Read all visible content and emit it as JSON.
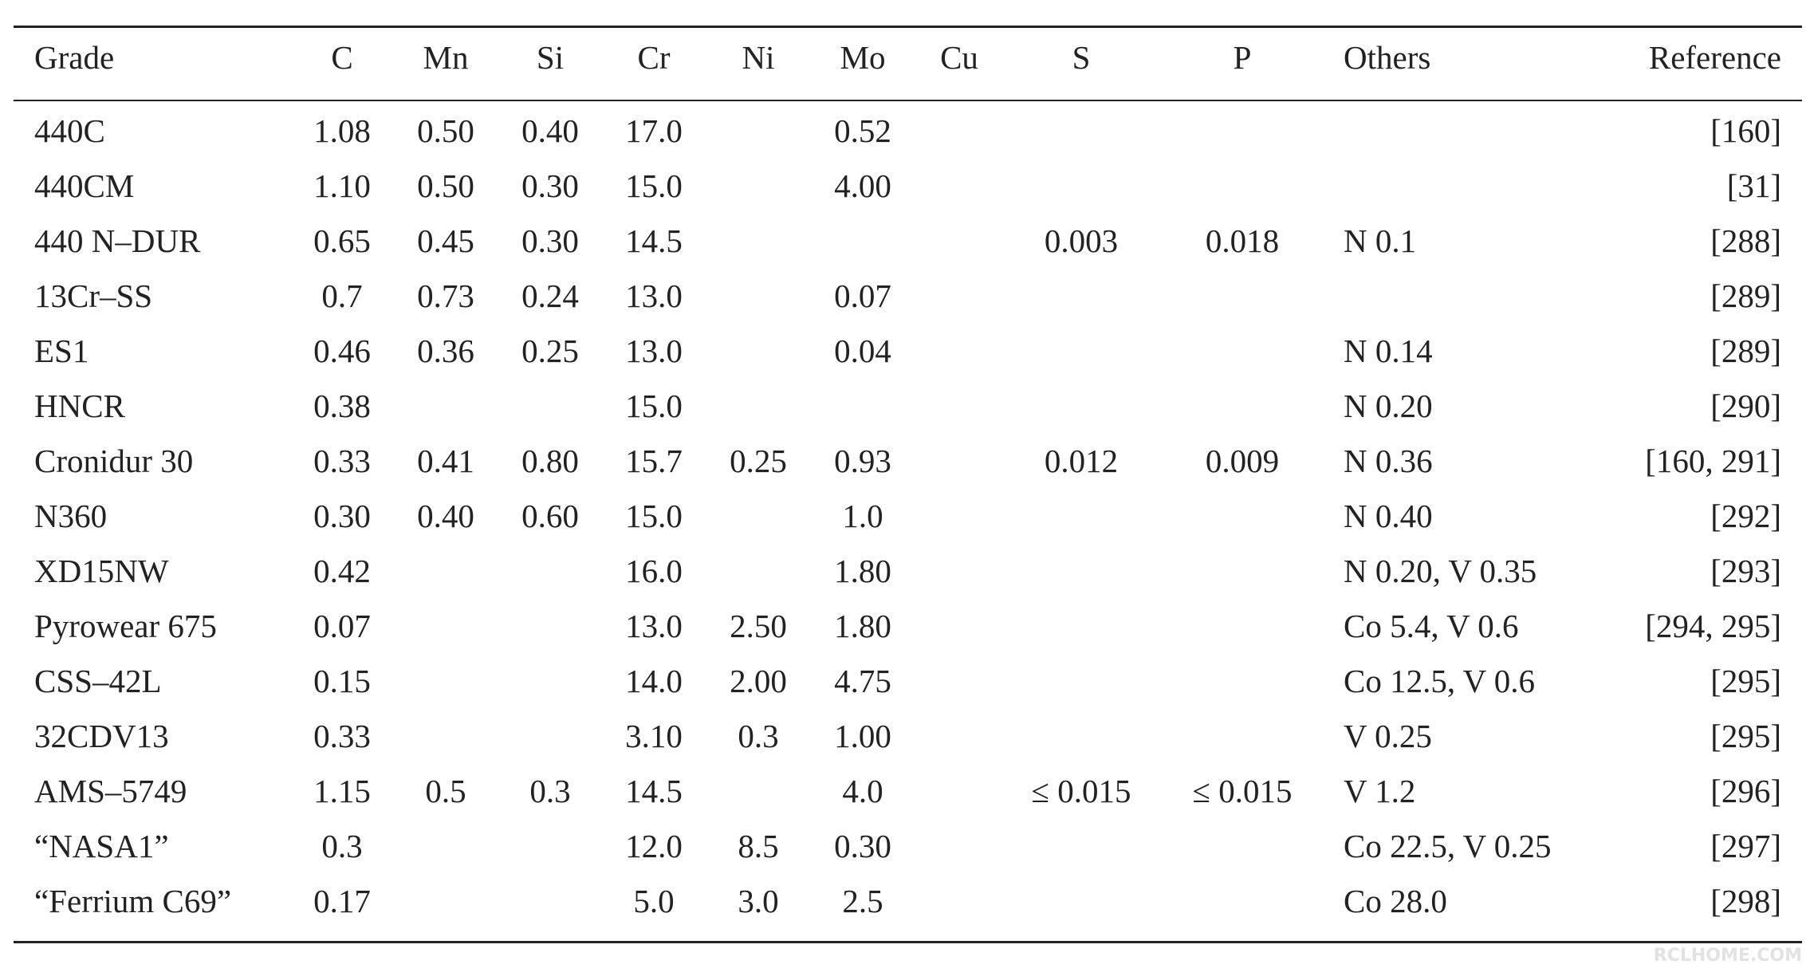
{
  "table": {
    "header": [
      "Grade",
      "C",
      "Mn",
      "Si",
      "Cr",
      "Ni",
      "Mo",
      "Cu",
      "S",
      "P",
      "Others",
      "Reference"
    ],
    "rows": [
      [
        "440C",
        "1.08",
        "0.50",
        "0.40",
        "17.0",
        null,
        "0.52",
        null,
        null,
        null,
        null,
        "[160]"
      ],
      [
        "440CM",
        "1.10",
        "0.50",
        "0.30",
        "15.0",
        null,
        "4.00",
        null,
        null,
        null,
        null,
        "[31]"
      ],
      [
        "440 N–DUR",
        "0.65",
        "0.45",
        "0.30",
        "14.5",
        null,
        null,
        null,
        "0.003",
        "0.018",
        "N 0.1",
        "[288]"
      ],
      [
        "13Cr–SS",
        "0.7",
        "0.73",
        "0.24",
        "13.0",
        null,
        "0.07",
        null,
        null,
        null,
        null,
        "[289]"
      ],
      [
        "ES1",
        "0.46",
        "0.36",
        "0.25",
        "13.0",
        null,
        "0.04",
        null,
        null,
        null,
        "N 0.14",
        "[289]"
      ],
      [
        "HNCR",
        "0.38",
        null,
        null,
        "15.0",
        null,
        null,
        null,
        null,
        null,
        "N 0.20",
        "[290]"
      ],
      [
        "Cronidur 30",
        "0.33",
        "0.41",
        "0.80",
        "15.7",
        "0.25",
        "0.93",
        null,
        "0.012",
        "0.009",
        "N 0.36",
        "[160, 291]"
      ],
      [
        "N360",
        "0.30",
        "0.40",
        "0.60",
        "15.0",
        null,
        "1.0",
        null,
        null,
        null,
        "N 0.40",
        "[292]"
      ],
      [
        "XD15NW",
        "0.42",
        null,
        null,
        "16.0",
        null,
        "1.80",
        null,
        null,
        null,
        "N 0.20, V 0.35",
        "[293]"
      ],
      [
        "Pyrowear 675",
        "0.07",
        null,
        null,
        "13.0",
        "2.50",
        "1.80",
        null,
        null,
        null,
        "Co 5.4, V 0.6",
        "[294, 295]"
      ],
      [
        "CSS–42L",
        "0.15",
        null,
        null,
        "14.0",
        "2.00",
        "4.75",
        null,
        null,
        null,
        "Co 12.5, V 0.6",
        "[295]"
      ],
      [
        "32CDV13",
        "0.33",
        null,
        null,
        "3.10",
        "0.3",
        "1.00",
        null,
        null,
        null,
        "V 0.25",
        "[295]"
      ],
      [
        "AMS–5749",
        "1.15",
        "0.5",
        "0.3",
        "14.5",
        null,
        "4.0",
        null,
        "≤ 0.015",
        "≤ 0.015",
        "V 1.2",
        "[296]"
      ],
      [
        "“NASA1”",
        "0.3",
        null,
        null,
        "12.0",
        "8.5",
        "0.30",
        null,
        null,
        null,
        "Co 22.5, V 0.25",
        "[297]"
      ],
      [
        "“Ferrium C69”",
        "0.17",
        null,
        null,
        "5.0",
        "3.0",
        "2.5",
        null,
        null,
        null,
        "Co 28.0",
        "[298]"
      ]
    ]
  },
  "watermark": "RCLHOME.COM"
}
